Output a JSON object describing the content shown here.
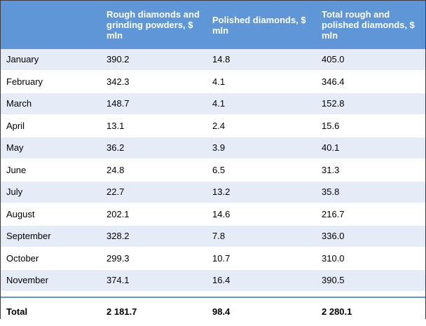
{
  "header": {
    "col1": "",
    "col2": "Rough diamonds and grinding powders, $ mln",
    "col3": "Polished diamonds, $ mln",
    "col4": "Total rough and polished diamonds, $ mln"
  },
  "rows": [
    {
      "month": "January",
      "rough": "390.2",
      "polished": "14.8",
      "total": "405.0"
    },
    {
      "month": "February",
      "rough": "342.3",
      "polished": "4.1",
      "total": "346.4"
    },
    {
      "month": "March",
      "rough": "148.7",
      "polished": "4.1",
      "total": "152.8"
    },
    {
      "month": "April",
      "rough": "13.1",
      "polished": "2.4",
      "total": "15.6"
    },
    {
      "month": "May",
      "rough": "36.2",
      "polished": "3.9",
      "total": "40.1"
    },
    {
      "month": "June",
      "rough": "24.8",
      "polished": "6.5",
      "total": "31.3"
    },
    {
      "month": "July",
      "rough": "22.7",
      "polished": "13.2",
      "total": "35.8"
    },
    {
      "month": "August",
      "rough": "202.1",
      "polished": "14.6",
      "total": "216.7"
    },
    {
      "month": "September",
      "rough": "328.2",
      "polished": "7.8",
      "total": "336.0"
    },
    {
      "month": "October",
      "rough": "299.3",
      "polished": "10.7",
      "total": "310.0"
    },
    {
      "month": "November",
      "rough": "374.1",
      "polished": "16.4",
      "total": "390.5"
    }
  ],
  "total": {
    "label": "Total",
    "rough": "2 181.7",
    "polished": "98.4",
    "total": "2 280.1"
  },
  "colors": {
    "header_bg": "#5e96d8",
    "stripe_bg": "#e6ecf7"
  }
}
